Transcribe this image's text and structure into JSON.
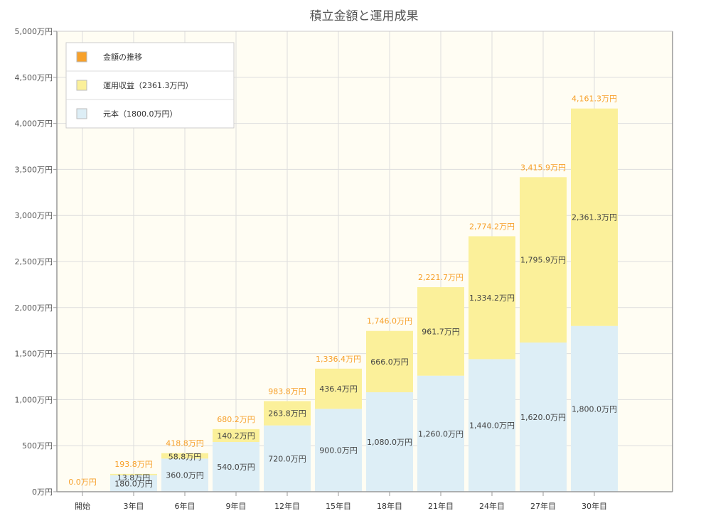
{
  "chart_data": {
    "type": "bar",
    "stacked": true,
    "title": "積立金額と運用成果",
    "categories": [
      "開始",
      "3年目",
      "6年目",
      "9年目",
      "12年目",
      "15年目",
      "18年目",
      "21年目",
      "24年目",
      "27年目",
      "30年目"
    ],
    "ylim": [
      0,
      5000
    ],
    "yticks": [
      0,
      500,
      1000,
      1500,
      2000,
      2500,
      3000,
      3500,
      4000,
      4500,
      5000
    ],
    "ytick_labels": [
      "0万円",
      "500万円",
      "1,000万円",
      "1,500万円",
      "2,000万円",
      "2,500万円",
      "3,000万円",
      "3,500万円",
      "4,000万円",
      "4,500万円",
      "5,000万円"
    ],
    "grid": true,
    "legend_position": "top-left",
    "legend": [
      {
        "label": "金額の推移",
        "color": "#F7A12B"
      },
      {
        "label": "運用収益（2361.3万円）",
        "color": "#FBF09A"
      },
      {
        "label": "元本（1800.0万円）",
        "color": "#DDEEF6"
      }
    ],
    "series": [
      {
        "color": "#DDEEF6",
        "values": [
          0,
          180,
          360,
          540,
          720,
          900,
          1080,
          1260,
          1440,
          1620,
          1800
        ],
        "labels": [
          "",
          "180.0万円",
          "360.0万円",
          "540.0万円",
          "720.0万円",
          "900.0万円",
          "1,080.0万円",
          "1,260.0万円",
          "1,440.0万円",
          "1,620.0万円",
          "1,800.0万円"
        ]
      },
      {
        "color": "#FBF09A",
        "values": [
          0,
          13.8,
          58.8,
          140.2,
          263.8,
          436.4,
          666.0,
          961.7,
          1334.2,
          1795.9,
          2361.3
        ],
        "labels": [
          "",
          "13.8万円",
          "58.8万円",
          "140.2万円",
          "263.8万円",
          "436.4万円",
          "666.0万円",
          "961.7万円",
          "1,334.2万円",
          "1,795.9万円",
          "2,361.3万円"
        ]
      }
    ],
    "totals": [
      0,
      193.8,
      418.8,
      680.2,
      983.8,
      1336.4,
      1746.0,
      2221.7,
      2774.2,
      3415.9,
      4161.3
    ],
    "total_labels": [
      "0.0万円",
      "193.8万円",
      "418.8万円",
      "680.2万円",
      "983.8万円",
      "1,336.4万円",
      "1,746.0万円",
      "2,221.7万円",
      "2,774.2万円",
      "3,415.9万円",
      "4,161.3万円"
    ],
    "total_color": "#F7A12B",
    "plot_background": "#FFFDF3",
    "grid_color": "#DDDDDD",
    "axis_color": "#999999"
  }
}
